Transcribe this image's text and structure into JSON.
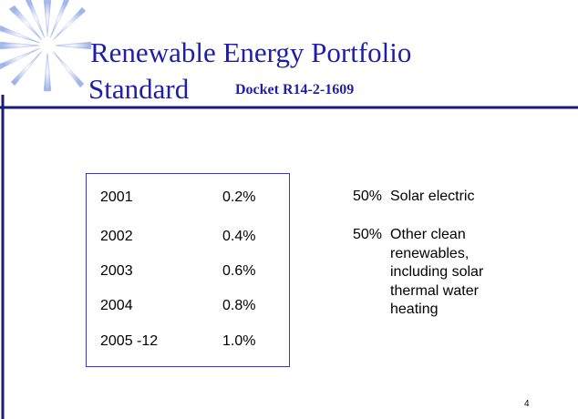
{
  "title": {
    "line1": "Renewable Energy Portfolio",
    "line2": "Standard",
    "docket": "Docket R14-2-1609"
  },
  "table": {
    "rows": [
      [
        "2001",
        "0.2%"
      ],
      [
        "2002",
        "0.4%"
      ],
      [
        "2003",
        "0.6%"
      ],
      [
        "2004",
        "0.8%"
      ],
      [
        "2005 -12",
        "1.0%"
      ]
    ]
  },
  "list": [
    {
      "share": "50%",
      "text": "Solar electric"
    },
    {
      "share": "50%",
      "text": "Other clean renewables, including solar thermal water heating"
    }
  ],
  "page_number": "4"
}
